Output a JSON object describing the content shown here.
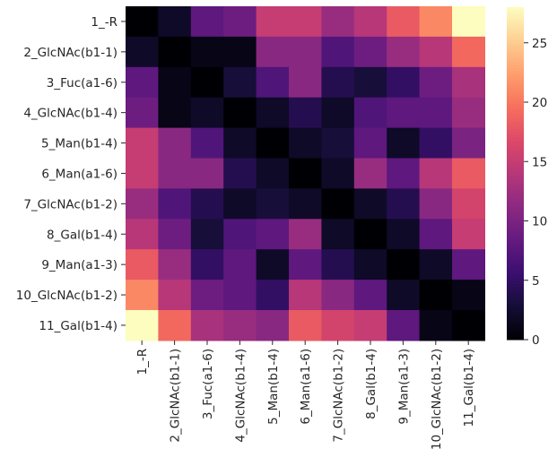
{
  "chart_data": {
    "type": "heatmap",
    "title": "",
    "xlabel": "",
    "ylabel": "",
    "x_labels": [
      "1_-R",
      "2_GlcNAc(b1-1)",
      "3_Fuc(a1-6)",
      "4_GlcNAc(b1-4)",
      "5_Man(b1-4)",
      "6_Man(a1-6)",
      "7_GlcNAc(b1-2)",
      "8_Gal(b1-4)",
      "9_Man(a1-3)",
      "10_GlcNAc(b1-2)",
      "11_Gal(b1-4)"
    ],
    "y_labels": [
      "1_-R",
      "2_GlcNAc(b1-1)",
      "3_Fuc(a1-6)",
      "4_GlcNAc(b1-4)",
      "5_Man(b1-4)",
      "6_Man(a1-6)",
      "7_GlcNAc(b1-2)",
      "8_Gal(b1-4)",
      "9_Man(a1-3)",
      "10_GlcNAc(b1-2)",
      "11_Gal(b1-4)"
    ],
    "values": [
      [
        0,
        2,
        8,
        9,
        15,
        15,
        12,
        14,
        18,
        21,
        28
      ],
      [
        2,
        0,
        1,
        1,
        11,
        11,
        7,
        9,
        12,
        14,
        19
      ],
      [
        8,
        1,
        0,
        3,
        7,
        11,
        4,
        3,
        5,
        9,
        13
      ],
      [
        9,
        1,
        2,
        0,
        2,
        4,
        2,
        7,
        8,
        8,
        12
      ],
      [
        15,
        11,
        7,
        2,
        0,
        2,
        3,
        8,
        2,
        5,
        10
      ],
      [
        15,
        11,
        11,
        4,
        2,
        0,
        2,
        12,
        8,
        14,
        18
      ],
      [
        12,
        7,
        4,
        2,
        3,
        2,
        0,
        2,
        4,
        11,
        16
      ],
      [
        14,
        9,
        3,
        7,
        8,
        12,
        2,
        0,
        2,
        8,
        15
      ],
      [
        18,
        12,
        5,
        8,
        2,
        8,
        4,
        2,
        0,
        2,
        8
      ],
      [
        21,
        14,
        9,
        8,
        5,
        14,
        11,
        8,
        2,
        0,
        1
      ],
      [
        28,
        19,
        13,
        12,
        11,
        18,
        16,
        15,
        8,
        1,
        0
      ]
    ],
    "colormap": "magma",
    "vmin": 0,
    "vmax": 28,
    "colorbar_ticks": [
      0,
      5,
      10,
      15,
      20,
      25
    ],
    "legend": "colorbar right"
  }
}
